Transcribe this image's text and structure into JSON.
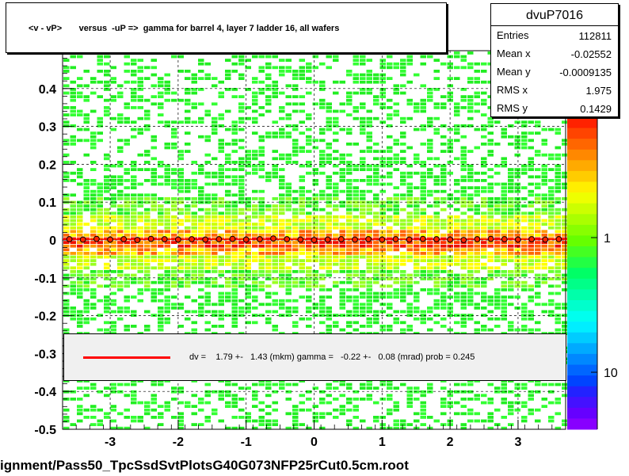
{
  "title": "<v - vP>       versus  -uP =>  gamma for barrel 4, layer 7 ladder 16, all wafers",
  "stats": {
    "name": "dvuP7016",
    "rows": [
      {
        "key": "Entries",
        "value": "112811"
      },
      {
        "key": "Mean x",
        "value": "-0.02552"
      },
      {
        "key": "Mean y",
        "value": "-0.0009135"
      },
      {
        "key": "RMS x",
        "value": "1.975"
      },
      {
        "key": "RMS y",
        "value": "0.1429"
      }
    ]
  },
  "fit": {
    "text": "dv =    1.79 +-   1.43 (mkm) gamma =   -0.22 +-   0.08 (mrad) prob = 0.245",
    "line_color": "#ff0000"
  },
  "footer": "ignment/Pass50_TpcSsdSvtPlotsG40G073NFP25rCut0.5cm.root",
  "chart_data": {
    "type": "heatmap",
    "xlim": [
      -3.7,
      3.7
    ],
    "ylim": [
      -0.5,
      0.5
    ],
    "x_ticks": [
      -3,
      -2,
      -1,
      0,
      1,
      2,
      3
    ],
    "y_ticks": [
      -0.5,
      -0.4,
      -0.3,
      -0.2,
      -0.1,
      0,
      0.1,
      0.2,
      0.3,
      0.4
    ],
    "x_tick_labels": [
      "-3",
      "-2",
      "-1",
      "0",
      "1",
      "2",
      "3"
    ],
    "y_tick_labels": [
      "-0.5",
      "-0.4",
      "-0.3",
      "-0.2",
      "-0.1",
      "0",
      "0.1",
      "0.2",
      "0.3",
      "0.4"
    ],
    "colorbar_labels": [
      "1",
      "10"
    ],
    "grid": true,
    "profile": {
      "x": [
        -3.6,
        -3.4,
        -3.2,
        -3.0,
        -2.8,
        -2.6,
        -2.4,
        -2.2,
        -2.0,
        -1.8,
        -1.6,
        -1.4,
        -1.2,
        -1.0,
        -0.8,
        -0.6,
        -0.4,
        -0.2,
        0.0,
        0.2,
        0.4,
        0.6,
        0.8,
        1.0,
        1.2,
        1.4,
        1.6,
        1.8,
        2.0,
        2.2,
        2.4,
        2.6,
        2.8,
        3.0,
        3.2,
        3.4,
        3.6
      ],
      "y": [
        0.002,
        0.001,
        0.003,
        0.001,
        0.002,
        0.0,
        0.003,
        0.002,
        0.001,
        0.002,
        0.001,
        0.002,
        0.003,
        0.001,
        0.002,
        0.004,
        0.002,
        0.001,
        0.0,
        0.001,
        0.002,
        0.001,
        0.002,
        0.001,
        0.002,
        0.001,
        0.003,
        0.002,
        0.001,
        0.0,
        0.002,
        0.003,
        0.002,
        0.001,
        0.002,
        0.001,
        0.002
      ]
    }
  }
}
